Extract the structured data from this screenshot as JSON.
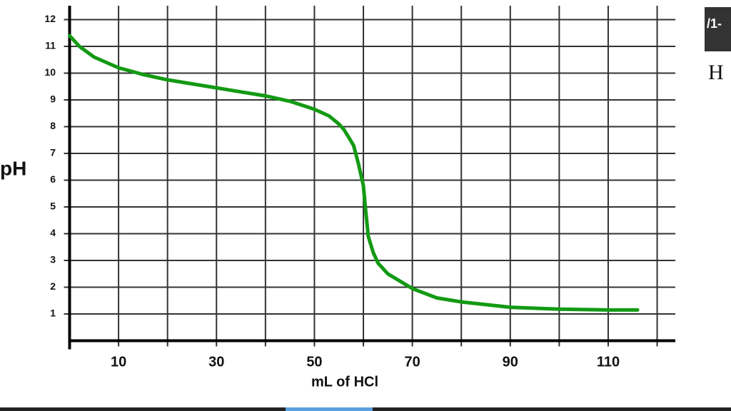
{
  "chart_data": {
    "type": "line",
    "y_label": "pH",
    "x_label": "mL of HCl",
    "x": [
      0,
      2,
      5,
      10,
      15,
      20,
      25,
      30,
      35,
      40,
      45,
      50,
      53,
      55,
      56,
      57,
      58,
      59,
      60,
      60.5,
      61,
      62,
      63,
      65,
      70,
      75,
      80,
      90,
      100,
      110,
      116
    ],
    "values": [
      11.4,
      11.0,
      10.6,
      10.2,
      9.95,
      9.75,
      9.6,
      9.45,
      9.3,
      9.15,
      8.95,
      8.65,
      8.4,
      8.1,
      7.9,
      7.6,
      7.3,
      6.6,
      5.8,
      4.8,
      3.9,
      3.3,
      2.9,
      2.5,
      1.95,
      1.6,
      1.45,
      1.25,
      1.18,
      1.15,
      1.15
    ],
    "color": "#139a13",
    "xlim": [
      0,
      124
    ],
    "ylim": [
      0,
      12.4
    ],
    "xticks": [
      10,
      30,
      50,
      70,
      90,
      110
    ],
    "yticks": [
      1,
      2,
      3,
      4,
      5,
      6,
      7,
      8,
      9,
      10,
      11,
      12
    ],
    "xgrid": [
      0,
      10,
      20,
      30,
      40,
      50,
      60,
      70,
      80,
      90,
      100,
      110,
      120
    ],
    "grid": true
  },
  "ui": {
    "tab_label": "/1-",
    "heading_fragment": "H"
  }
}
